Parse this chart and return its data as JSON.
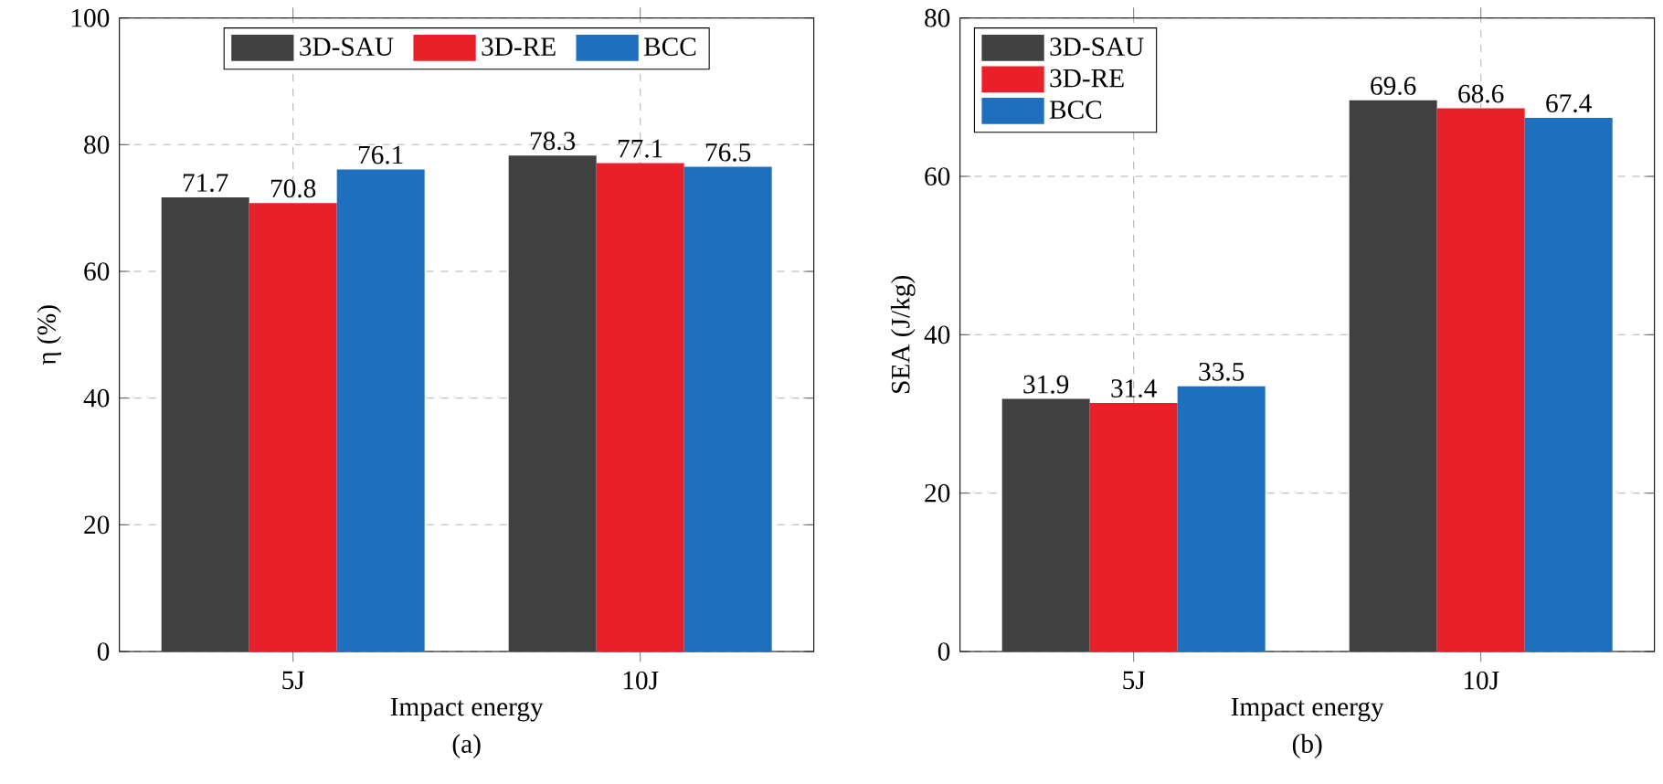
{
  "chart_data": [
    {
      "type": "bar",
      "categories": [
        "5J",
        "10J"
      ],
      "xlabel": "Impact energy",
      "ylabel": "η (%)",
      "ylim": [
        0,
        100
      ],
      "yticks": [
        0,
        20,
        40,
        60,
        80,
        100
      ],
      "grid": true,
      "legend": "top",
      "data_labels": true,
      "annotations": [
        "(a)"
      ],
      "series": [
        {
          "name": "3D-SAU",
          "color": "#404040",
          "values": [
            71.7,
            78.3
          ]
        },
        {
          "name": "3D-RE",
          "color": "#e8202a",
          "values": [
            70.8,
            77.1
          ]
        },
        {
          "name": "BCC",
          "color": "#1f6fbf",
          "values": [
            76.1,
            76.5
          ]
        }
      ]
    },
    {
      "type": "bar",
      "categories": [
        "5J",
        "10J"
      ],
      "xlabel": "Impact energy",
      "ylabel": "SEA (J/kg)",
      "ylim": [
        0,
        80
      ],
      "yticks": [
        0,
        20,
        40,
        60,
        80
      ],
      "grid": true,
      "legend": "top left",
      "data_labels": true,
      "annotations": [
        "(b)"
      ],
      "series": [
        {
          "name": "3D-SAU",
          "color": "#404040",
          "values": [
            31.9,
            69.6
          ]
        },
        {
          "name": "3D-RE",
          "color": "#e8202a",
          "values": [
            31.4,
            68.6
          ]
        },
        {
          "name": "BCC",
          "color": "#1f6fbf",
          "values": [
            33.5,
            67.4
          ]
        }
      ]
    }
  ]
}
